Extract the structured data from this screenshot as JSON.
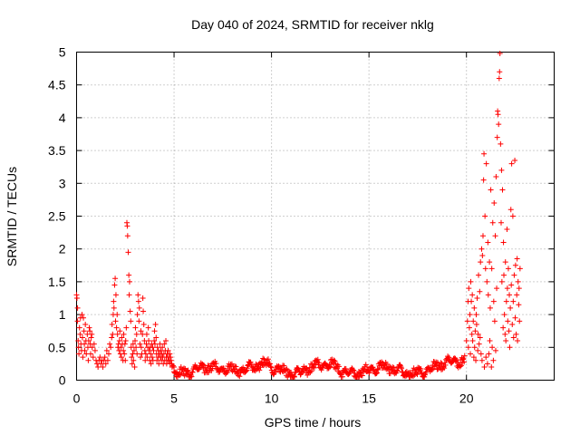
{
  "chart_data": {
    "type": "scatter",
    "title": "Day 040 of 2024, SRMTID for receiver nklg",
    "xlabel": "GPS time / hours",
    "ylabel": "SRMTID / TECUs",
    "xlim": [
      0,
      24.5
    ],
    "ylim": [
      0,
      5
    ],
    "grid": true,
    "marker": "+",
    "color": "#ff0000",
    "x_ticks": [
      0,
      5,
      10,
      15,
      20
    ],
    "y_ticks": [
      0,
      0.5,
      1,
      1.5,
      2,
      2.5,
      3,
      3.5,
      4,
      4.5,
      5
    ],
    "series": [
      {
        "name": "SRMTID",
        "points": [
          [
            0.0,
            1.3
          ],
          [
            0.02,
            1.25
          ],
          [
            0.05,
            1.1
          ],
          [
            0.05,
            0.9
          ],
          [
            0.08,
            0.6
          ],
          [
            0.1,
            0.5
          ],
          [
            0.12,
            0.4
          ],
          [
            0.15,
            0.8
          ],
          [
            0.18,
            0.7
          ],
          [
            0.2,
            0.95
          ],
          [
            0.22,
            0.55
          ],
          [
            0.25,
            0.45
          ],
          [
            0.28,
            1.0
          ],
          [
            0.3,
            0.65
          ],
          [
            0.32,
            0.35
          ],
          [
            0.35,
            0.95
          ],
          [
            0.38,
            0.75
          ],
          [
            0.4,
            0.55
          ],
          [
            0.42,
            0.45
          ],
          [
            0.45,
            0.85
          ],
          [
            0.48,
            0.6
          ],
          [
            0.5,
            0.4
          ],
          [
            0.55,
            0.7
          ],
          [
            0.58,
            0.5
          ],
          [
            0.6,
            0.3
          ],
          [
            0.62,
            0.6
          ],
          [
            0.65,
            0.8
          ],
          [
            0.68,
            0.75
          ],
          [
            0.7,
            0.55
          ],
          [
            0.72,
            0.4
          ],
          [
            0.75,
            0.65
          ],
          [
            0.78,
            0.7
          ],
          [
            0.8,
            0.5
          ],
          [
            0.85,
            0.35
          ],
          [
            0.9,
            0.55
          ],
          [
            0.95,
            0.45
          ],
          [
            1.0,
            0.3
          ],
          [
            1.05,
            0.25
          ],
          [
            1.1,
            0.2
          ],
          [
            1.15,
            0.3
          ],
          [
            1.2,
            0.35
          ],
          [
            1.25,
            0.25
          ],
          [
            1.3,
            0.3
          ],
          [
            1.35,
            0.2
          ],
          [
            1.4,
            0.3
          ],
          [
            1.45,
            0.35
          ],
          [
            1.5,
            0.25
          ],
          [
            1.55,
            0.45
          ],
          [
            1.6,
            0.3
          ],
          [
            1.65,
            0.4
          ],
          [
            1.7,
            0.55
          ],
          [
            1.75,
            0.5
          ],
          [
            1.8,
            0.65
          ],
          [
            1.82,
            0.85
          ],
          [
            1.85,
            0.7
          ],
          [
            1.88,
            1.0
          ],
          [
            1.9,
            1.2
          ],
          [
            1.92,
            1.1
          ],
          [
            1.95,
            1.45
          ],
          [
            1.98,
            1.55
          ],
          [
            2.0,
            0.9
          ],
          [
            2.02,
            1.3
          ],
          [
            2.05,
            0.8
          ],
          [
            2.08,
            1.0
          ],
          [
            2.1,
            0.7
          ],
          [
            2.12,
            0.5
          ],
          [
            2.15,
            0.55
          ],
          [
            2.18,
            0.45
          ],
          [
            2.2,
            0.6
          ],
          [
            2.22,
            0.75
          ],
          [
            2.25,
            0.4
          ],
          [
            2.28,
            0.5
          ],
          [
            2.3,
            0.35
          ],
          [
            2.32,
            0.65
          ],
          [
            2.35,
            0.55
          ],
          [
            2.38,
            0.3
          ],
          [
            2.4,
            0.45
          ],
          [
            2.42,
            0.7
          ],
          [
            2.45,
            0.4
          ],
          [
            2.48,
            0.55
          ],
          [
            2.5,
            0.3
          ],
          [
            2.52,
            0.6
          ],
          [
            2.55,
            0.8
          ],
          [
            2.58,
            2.4
          ],
          [
            2.6,
            2.35
          ],
          [
            2.62,
            2.2
          ],
          [
            2.65,
            1.95
          ],
          [
            2.68,
            1.6
          ],
          [
            2.7,
            1.3
          ],
          [
            2.72,
            1.5
          ],
          [
            2.75,
            1.05
          ],
          [
            2.78,
            0.9
          ],
          [
            2.8,
            0.5
          ],
          [
            2.82,
            0.35
          ],
          [
            2.85,
            0.25
          ],
          [
            2.88,
            0.4
          ],
          [
            2.9,
            0.55
          ],
          [
            2.92,
            0.3
          ],
          [
            2.95,
            0.45
          ],
          [
            2.98,
            0.2
          ],
          [
            3.0,
            0.6
          ],
          [
            3.02,
            0.8
          ],
          [
            3.05,
            0.5
          ],
          [
            3.08,
            0.7
          ],
          [
            3.1,
            0.4
          ],
          [
            3.12,
            1.0
          ],
          [
            3.15,
            1.3
          ],
          [
            3.18,
            1.2
          ],
          [
            3.2,
            0.9
          ],
          [
            3.22,
            1.1
          ],
          [
            3.25,
            0.55
          ],
          [
            3.28,
            0.35
          ],
          [
            3.3,
            0.75
          ],
          [
            3.32,
            0.5
          ],
          [
            3.35,
            0.4
          ],
          [
            3.38,
            0.7
          ],
          [
            3.4,
            1.25
          ],
          [
            3.42,
            1.05
          ],
          [
            3.45,
            0.85
          ],
          [
            3.48,
            0.6
          ],
          [
            3.5,
            0.45
          ],
          [
            3.52,
            0.3
          ],
          [
            3.55,
            0.4
          ],
          [
            3.58,
            0.55
          ],
          [
            3.6,
            0.7
          ],
          [
            3.62,
            0.35
          ],
          [
            3.65,
            0.5
          ],
          [
            3.68,
            0.8
          ],
          [
            3.7,
            0.6
          ],
          [
            3.72,
            0.45
          ],
          [
            3.75,
            0.3
          ],
          [
            3.78,
            0.5
          ],
          [
            3.8,
            0.4
          ],
          [
            3.82,
            0.25
          ],
          [
            3.85,
            0.55
          ],
          [
            3.88,
            0.35
          ],
          [
            3.9,
            0.5
          ],
          [
            3.92,
            0.3
          ],
          [
            3.95,
            0.45
          ],
          [
            3.98,
            0.6
          ],
          [
            4.0,
            0.75
          ],
          [
            4.02,
            0.55
          ],
          [
            4.05,
            0.85
          ],
          [
            4.08,
            0.65
          ],
          [
            4.1,
            0.4
          ],
          [
            4.12,
            0.3
          ],
          [
            4.15,
            0.5
          ],
          [
            4.18,
            0.35
          ],
          [
            4.2,
            0.45
          ],
          [
            4.22,
            0.25
          ],
          [
            4.25,
            0.4
          ],
          [
            4.28,
            0.55
          ],
          [
            4.3,
            0.35
          ],
          [
            4.32,
            0.45
          ],
          [
            4.35,
            0.3
          ],
          [
            4.38,
            0.4
          ],
          [
            4.4,
            0.5
          ],
          [
            4.42,
            0.35
          ],
          [
            4.45,
            0.25
          ],
          [
            4.48,
            0.4
          ],
          [
            4.5,
            0.55
          ],
          [
            4.52,
            0.3
          ],
          [
            4.55,
            0.45
          ],
          [
            4.58,
            0.6
          ],
          [
            4.6,
            0.35
          ],
          [
            4.62,
            0.25
          ],
          [
            4.65,
            0.4
          ],
          [
            4.68,
            0.3
          ],
          [
            4.7,
            0.45
          ],
          [
            4.72,
            0.35
          ],
          [
            4.75,
            0.3
          ],
          [
            4.78,
            0.4
          ],
          [
            4.8,
            0.25
          ],
          [
            4.82,
            0.35
          ],
          [
            4.85,
            0.3
          ],
          [
            4.88,
            0.25
          ],
          [
            4.9,
            0.2
          ],
          [
            4.95,
            0.22
          ],
          [
            5.0,
            0.2
          ],
          [
            20.0,
            0.6
          ],
          [
            20.05,
            0.9
          ],
          [
            20.08,
            1.2
          ],
          [
            20.1,
            0.5
          ],
          [
            20.12,
            1.4
          ],
          [
            20.15,
            0.8
          ],
          [
            20.18,
            1.0
          ],
          [
            20.2,
            0.4
          ],
          [
            20.22,
            1.5
          ],
          [
            20.25,
            1.2
          ],
          [
            20.28,
            0.7
          ],
          [
            20.3,
            1.3
          ],
          [
            20.32,
            0.6
          ],
          [
            20.35,
            0.9
          ],
          [
            20.38,
            0.35
          ],
          [
            20.4,
            1.1
          ],
          [
            20.42,
            0.5
          ],
          [
            20.45,
            0.75
          ],
          [
            20.48,
            0.3
          ],
          [
            20.5,
            1.0
          ],
          [
            20.52,
            0.85
          ],
          [
            20.55,
            1.25
          ],
          [
            20.58,
            0.45
          ],
          [
            20.6,
            0.7
          ],
          [
            20.62,
            1.6
          ],
          [
            20.65,
            0.55
          ],
          [
            20.68,
            1.35
          ],
          [
            20.7,
            0.65
          ],
          [
            20.72,
            1.8
          ],
          [
            20.75,
            0.4
          ],
          [
            20.78,
            2.0
          ],
          [
            20.8,
            0.3
          ],
          [
            20.82,
            1.9
          ],
          [
            20.85,
            2.2
          ],
          [
            20.88,
            3.05
          ],
          [
            20.9,
            3.45
          ],
          [
            20.92,
            0.2
          ],
          [
            20.95,
            2.5
          ],
          [
            20.98,
            1.7
          ],
          [
            21.0,
            0.35
          ],
          [
            21.02,
            3.3
          ],
          [
            21.05,
            1.5
          ],
          [
            21.08,
            0.25
          ],
          [
            21.1,
            2.1
          ],
          [
            21.12,
            1.3
          ],
          [
            21.15,
            0.4
          ],
          [
            21.18,
            1.8
          ],
          [
            21.2,
            0.6
          ],
          [
            21.22,
            1.1
          ],
          [
            21.25,
            2.9
          ],
          [
            21.28,
            0.2
          ],
          [
            21.3,
            1.7
          ],
          [
            21.32,
            0.5
          ],
          [
            21.35,
            2.4
          ],
          [
            21.38,
            0.3
          ],
          [
            21.4,
            1.2
          ],
          [
            21.42,
            2.7
          ],
          [
            21.45,
            0.9
          ],
          [
            21.48,
            2.2
          ],
          [
            21.5,
            0.45
          ],
          [
            21.52,
            3.1
          ],
          [
            21.55,
            1.4
          ],
          [
            21.58,
            3.7
          ],
          [
            21.6,
            4.1
          ],
          [
            21.62,
            4.05
          ],
          [
            21.65,
            3.9
          ],
          [
            21.68,
            4.6
          ],
          [
            21.7,
            4.7
          ],
          [
            21.72,
            4.98
          ],
          [
            21.75,
            3.6
          ],
          [
            21.78,
            2.4
          ],
          [
            21.8,
            3.2
          ],
          [
            21.82,
            1.5
          ],
          [
            21.85,
            2.9
          ],
          [
            21.88,
            0.8
          ],
          [
            21.9,
            2.1
          ],
          [
            21.92,
            1.6
          ],
          [
            21.95,
            1.0
          ],
          [
            21.98,
            0.7
          ],
          [
            22.0,
            1.8
          ],
          [
            22.02,
            0.6
          ],
          [
            22.05,
            1.2
          ],
          [
            22.08,
            2.3
          ],
          [
            22.1,
            1.4
          ],
          [
            22.12,
            0.9
          ],
          [
            22.15,
            1.7
          ],
          [
            22.18,
            0.75
          ],
          [
            22.2,
            1.3
          ],
          [
            22.22,
            0.5
          ],
          [
            22.25,
            1.1
          ],
          [
            22.28,
            2.6
          ],
          [
            22.3,
            1.45
          ],
          [
            22.32,
            3.3
          ],
          [
            22.35,
            0.85
          ],
          [
            22.38,
            2.5
          ],
          [
            22.4,
            1.2
          ],
          [
            22.42,
            0.65
          ],
          [
            22.45,
            1.6
          ],
          [
            22.48,
            3.35
          ],
          [
            22.5,
            0.95
          ],
          [
            22.52,
            1.75
          ],
          [
            22.55,
            0.7
          ],
          [
            22.58,
            1.3
          ],
          [
            22.6,
            1.85
          ],
          [
            22.62,
            0.6
          ],
          [
            22.65,
            1.5
          ],
          [
            22.68,
            1.15
          ],
          [
            22.7,
            1.4
          ],
          [
            22.72,
            0.9
          ],
          [
            22.75,
            1.7
          ]
        ]
      }
    ]
  }
}
